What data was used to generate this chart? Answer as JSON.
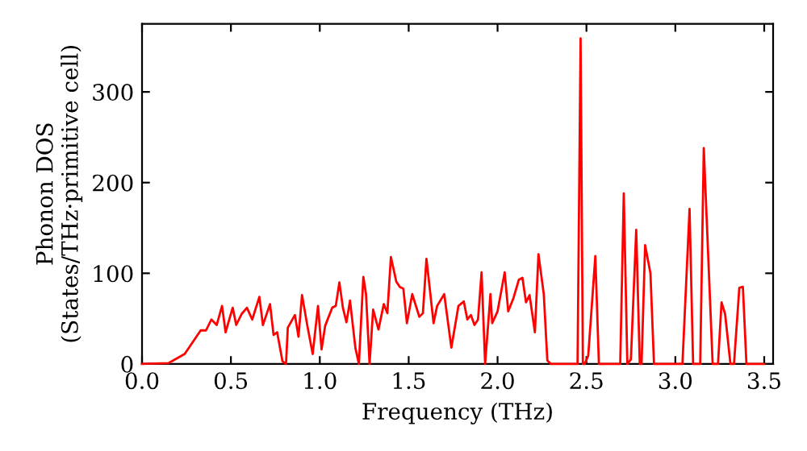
{
  "chart_data": {
    "type": "line",
    "xlabel": "Frequency (THz)",
    "ylabel": "Phonon DOS\n(States/THz·primitive cell)",
    "xlim": [
      0,
      3.55
    ],
    "ylim": [
      0,
      375
    ],
    "xticks": [
      {
        "value": 0,
        "label": "0.0"
      },
      {
        "value": 0.5,
        "label": "0.5"
      },
      {
        "value": 1,
        "label": "1.0"
      },
      {
        "value": 1.5,
        "label": "1.5"
      },
      {
        "value": 2,
        "label": "2.0"
      },
      {
        "value": 2.5,
        "label": "2.5"
      },
      {
        "value": 3,
        "label": "3.0"
      },
      {
        "value": 3.5,
        "label": "3.5"
      }
    ],
    "yticks": [
      0,
      100,
      200,
      300
    ],
    "grid": false,
    "legend": false,
    "marker": "none",
    "line_style": "solid",
    "series": [
      {
        "color": "#ff0000",
        "x": [
          0.0,
          0.15,
          0.24,
          0.33,
          0.36,
          0.39,
          0.42,
          0.45,
          0.47,
          0.51,
          0.53,
          0.56,
          0.59,
          0.62,
          0.66,
          0.68,
          0.72,
          0.74,
          0.76,
          0.79,
          0.81,
          0.82,
          0.86,
          0.88,
          0.9,
          0.93,
          0.96,
          0.99,
          1.01,
          1.03,
          1.07,
          1.09,
          1.11,
          1.13,
          1.15,
          1.17,
          1.2,
          1.22,
          1.245,
          1.26,
          1.28,
          1.3,
          1.33,
          1.36,
          1.38,
          1.4,
          1.43,
          1.45,
          1.47,
          1.49,
          1.52,
          1.56,
          1.58,
          1.6,
          1.64,
          1.66,
          1.7,
          1.74,
          1.78,
          1.81,
          1.83,
          1.85,
          1.87,
          1.89,
          1.91,
          1.93,
          1.96,
          1.97,
          2.0,
          2.04,
          2.06,
          2.09,
          2.12,
          2.14,
          2.16,
          2.18,
          2.21,
          2.23,
          2.26,
          2.28,
          2.3,
          2.45,
          2.467,
          2.48,
          2.49,
          2.51,
          2.55,
          2.57,
          2.69,
          2.71,
          2.73,
          2.75,
          2.78,
          2.8,
          2.81,
          2.83,
          2.86,
          2.88,
          3.04,
          3.08,
          3.1,
          3.14,
          3.16,
          3.21,
          3.24,
          3.26,
          3.28,
          3.31,
          3.33,
          3.36,
          3.38,
          3.4,
          3.5
        ],
        "values": [
          0,
          1,
          11,
          37,
          37,
          49,
          43,
          64,
          35,
          62,
          43,
          55,
          62,
          49,
          74,
          43,
          66,
          32,
          35,
          3,
          0,
          40,
          54,
          30,
          76,
          42,
          11,
          64,
          16,
          42,
          62,
          64,
          90,
          62,
          46,
          70,
          18,
          0,
          96,
          77,
          0,
          60,
          38,
          66,
          56,
          118,
          91,
          85,
          83,
          45,
          77,
          52,
          56,
          116,
          45,
          64,
          77,
          18,
          64,
          69,
          49,
          54,
          43,
          49,
          101,
          0,
          77,
          45,
          58,
          101,
          58,
          73,
          93,
          95,
          68,
          76,
          35,
          121,
          77,
          4,
          0,
          0,
          359,
          0,
          0,
          9,
          119,
          0,
          0,
          188,
          0,
          5,
          148,
          0,
          0,
          131,
          100,
          0,
          0,
          171,
          0,
          0,
          238,
          0,
          0,
          68,
          55,
          0,
          0,
          84,
          85,
          0,
          0
        ]
      }
    ]
  }
}
